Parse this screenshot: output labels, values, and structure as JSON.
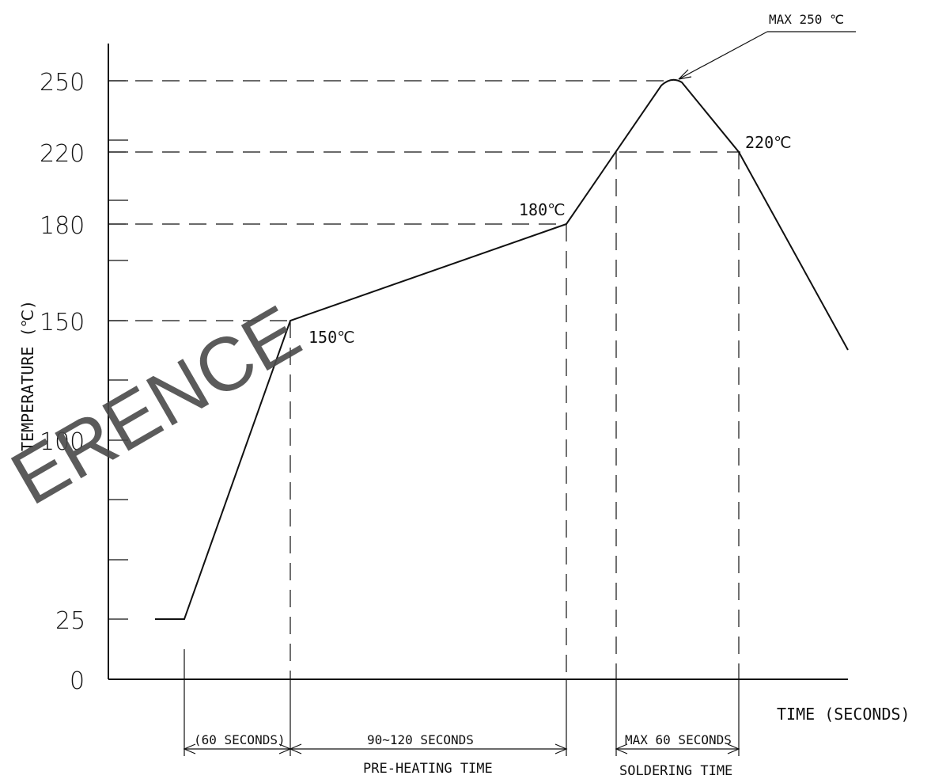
{
  "diagram": {
    "y_axis_label": "TEMPERATURE (℃)",
    "x_axis_label": "TIME (SECONDS)",
    "y_ticks": [
      {
        "label": "250",
        "value": 250
      },
      {
        "label": "220",
        "value": 220
      },
      {
        "label": "180",
        "value": 180
      },
      {
        "label": "150",
        "value": 150
      },
      {
        "label": "100",
        "value": 100
      },
      {
        "label": "25",
        "value": 25
      },
      {
        "label": "0",
        "value": 0
      }
    ],
    "point_labels": {
      "peak": "MAX 250 ℃",
      "t220": "220℃",
      "t180": "180℃",
      "t150": "150℃"
    },
    "intervals": {
      "ramp": "(60 SECONDS)",
      "preheat_duration": "90~120 SECONDS",
      "preheat_name": "PRE-HEATING TIME",
      "solder_duration": "MAX 60 SECONDS",
      "solder_name": "SOLDERING TIME"
    },
    "watermark": "ERENCE"
  }
}
